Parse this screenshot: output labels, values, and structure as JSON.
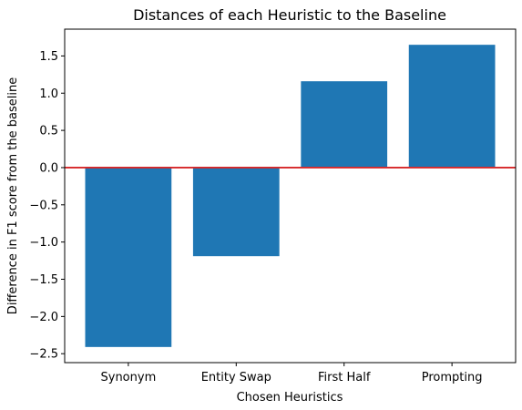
{
  "chart_data": {
    "type": "bar",
    "title": "Distances of each Heuristic to the Baseline",
    "xlabel": "Chosen Heuristics",
    "ylabel": "Difference in F1 score from the baseline",
    "categories": [
      "Synonym",
      "Entity Swap",
      "First Half",
      "Prompting"
    ],
    "values": [
      -2.41,
      -1.19,
      1.16,
      1.65
    ],
    "ylim": [
      -2.62,
      1.86
    ],
    "yticks": [
      -2.5,
      -2.0,
      -1.5,
      -1.0,
      -0.5,
      0.0,
      0.5,
      1.0,
      1.5
    ],
    "ytick_labels": [
      "−2.5",
      "−2.0",
      "−1.5",
      "−1.0",
      "−0.5",
      "0.0",
      "0.5",
      "1.0",
      "1.5"
    ],
    "bar_color": "#1f77b4",
    "baseline": {
      "value": 0.0,
      "color": "#d62728"
    },
    "grid": false,
    "legend": "none"
  }
}
